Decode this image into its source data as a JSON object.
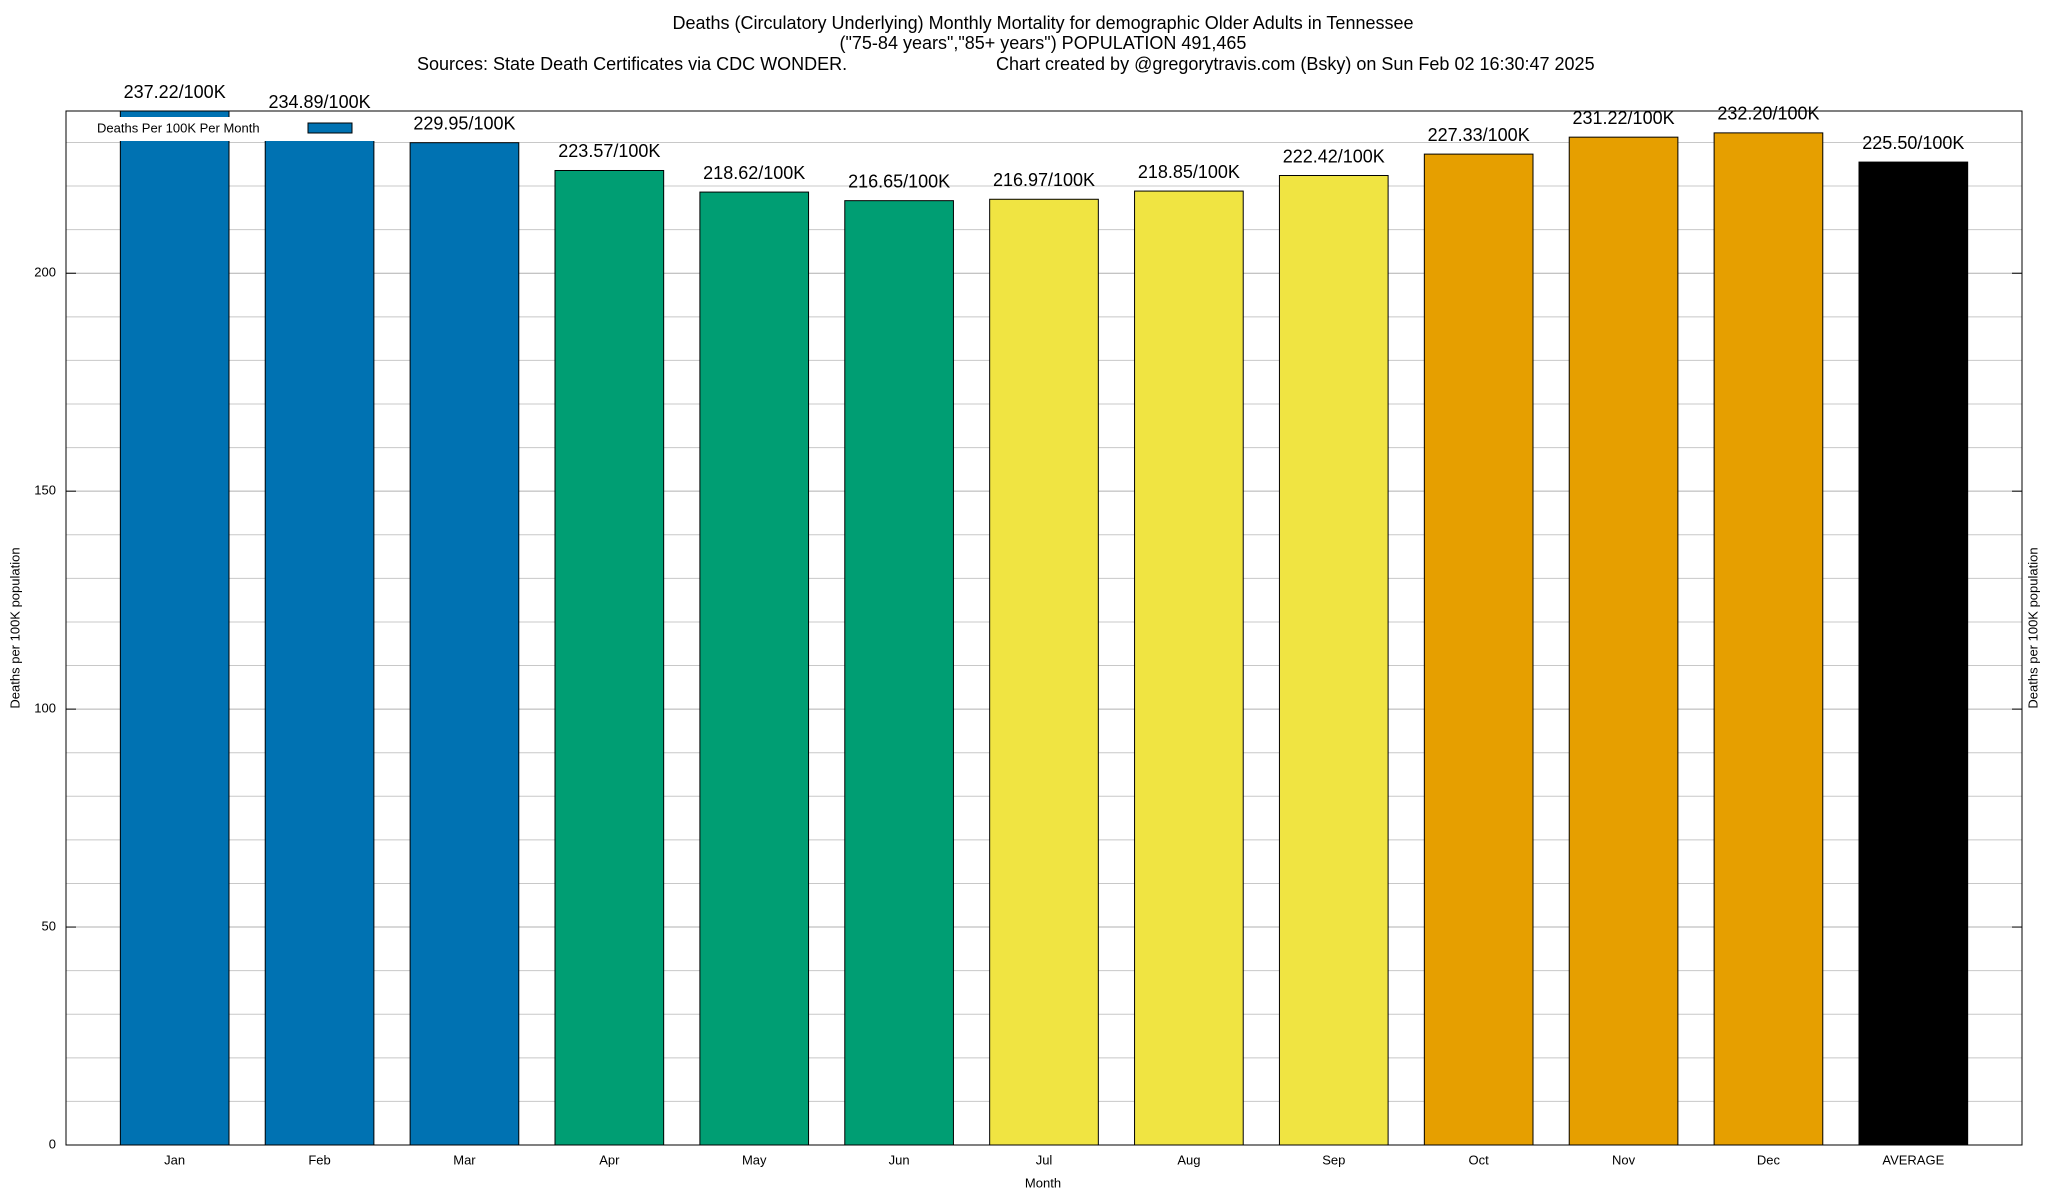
{
  "chart_data": {
    "type": "bar",
    "title": [
      "Deaths (Circulatory Underlying) Monthly Mortality for demographic Older Adults in Tennessee",
      "(\"75-84 years\",\"85+ years\") POPULATION 491,465"
    ],
    "source": "Sources: State Death Certificates via CDC WONDER.",
    "credit": "Chart created by @gregorytravis.com (Bsky) on Sun Feb 02 16:30:47 2025",
    "x_label": "Month",
    "y_label": "Deaths per 100K population",
    "legend": "Deaths Per 100K Per Month",
    "legend_color": "#0072b2",
    "legend_position": "top-left",
    "categories": [
      "Jan",
      "Feb",
      "Mar",
      "Apr",
      "May",
      "Jun",
      "Jul",
      "Aug",
      "Sep",
      "Oct",
      "Nov",
      "Dec",
      "AVERAGE"
    ],
    "values": [
      237.22,
      234.89,
      229.95,
      223.57,
      218.62,
      216.65,
      216.97,
      218.85,
      222.42,
      227.33,
      231.22,
      232.2,
      225.5
    ],
    "value_labels": [
      "237.22/100K",
      "234.89/100K",
      "229.95/100K",
      "223.57/100K",
      "218.62/100K",
      "216.65/100K",
      "216.97/100K",
      "218.85/100K",
      "222.42/100K",
      "227.33/100K",
      "231.22/100K",
      "232.20/100K",
      "225.50/100K"
    ],
    "colors": [
      "#0072b2",
      "#0072b2",
      "#0072b2",
      "#009e73",
      "#009e73",
      "#009e73",
      "#f0e442",
      "#f0e442",
      "#f0e442",
      "#e69f00",
      "#e69f00",
      "#e69f00",
      "#000000"
    ],
    "ylim": [
      0,
      237.22
    ],
    "yticks": [
      0,
      50,
      100,
      150,
      200
    ],
    "y_minor_ticks": [
      10,
      20,
      30,
      40,
      60,
      70,
      80,
      90,
      110,
      120,
      130,
      140,
      160,
      170,
      180,
      190,
      210,
      220,
      230
    ],
    "grid": true
  }
}
